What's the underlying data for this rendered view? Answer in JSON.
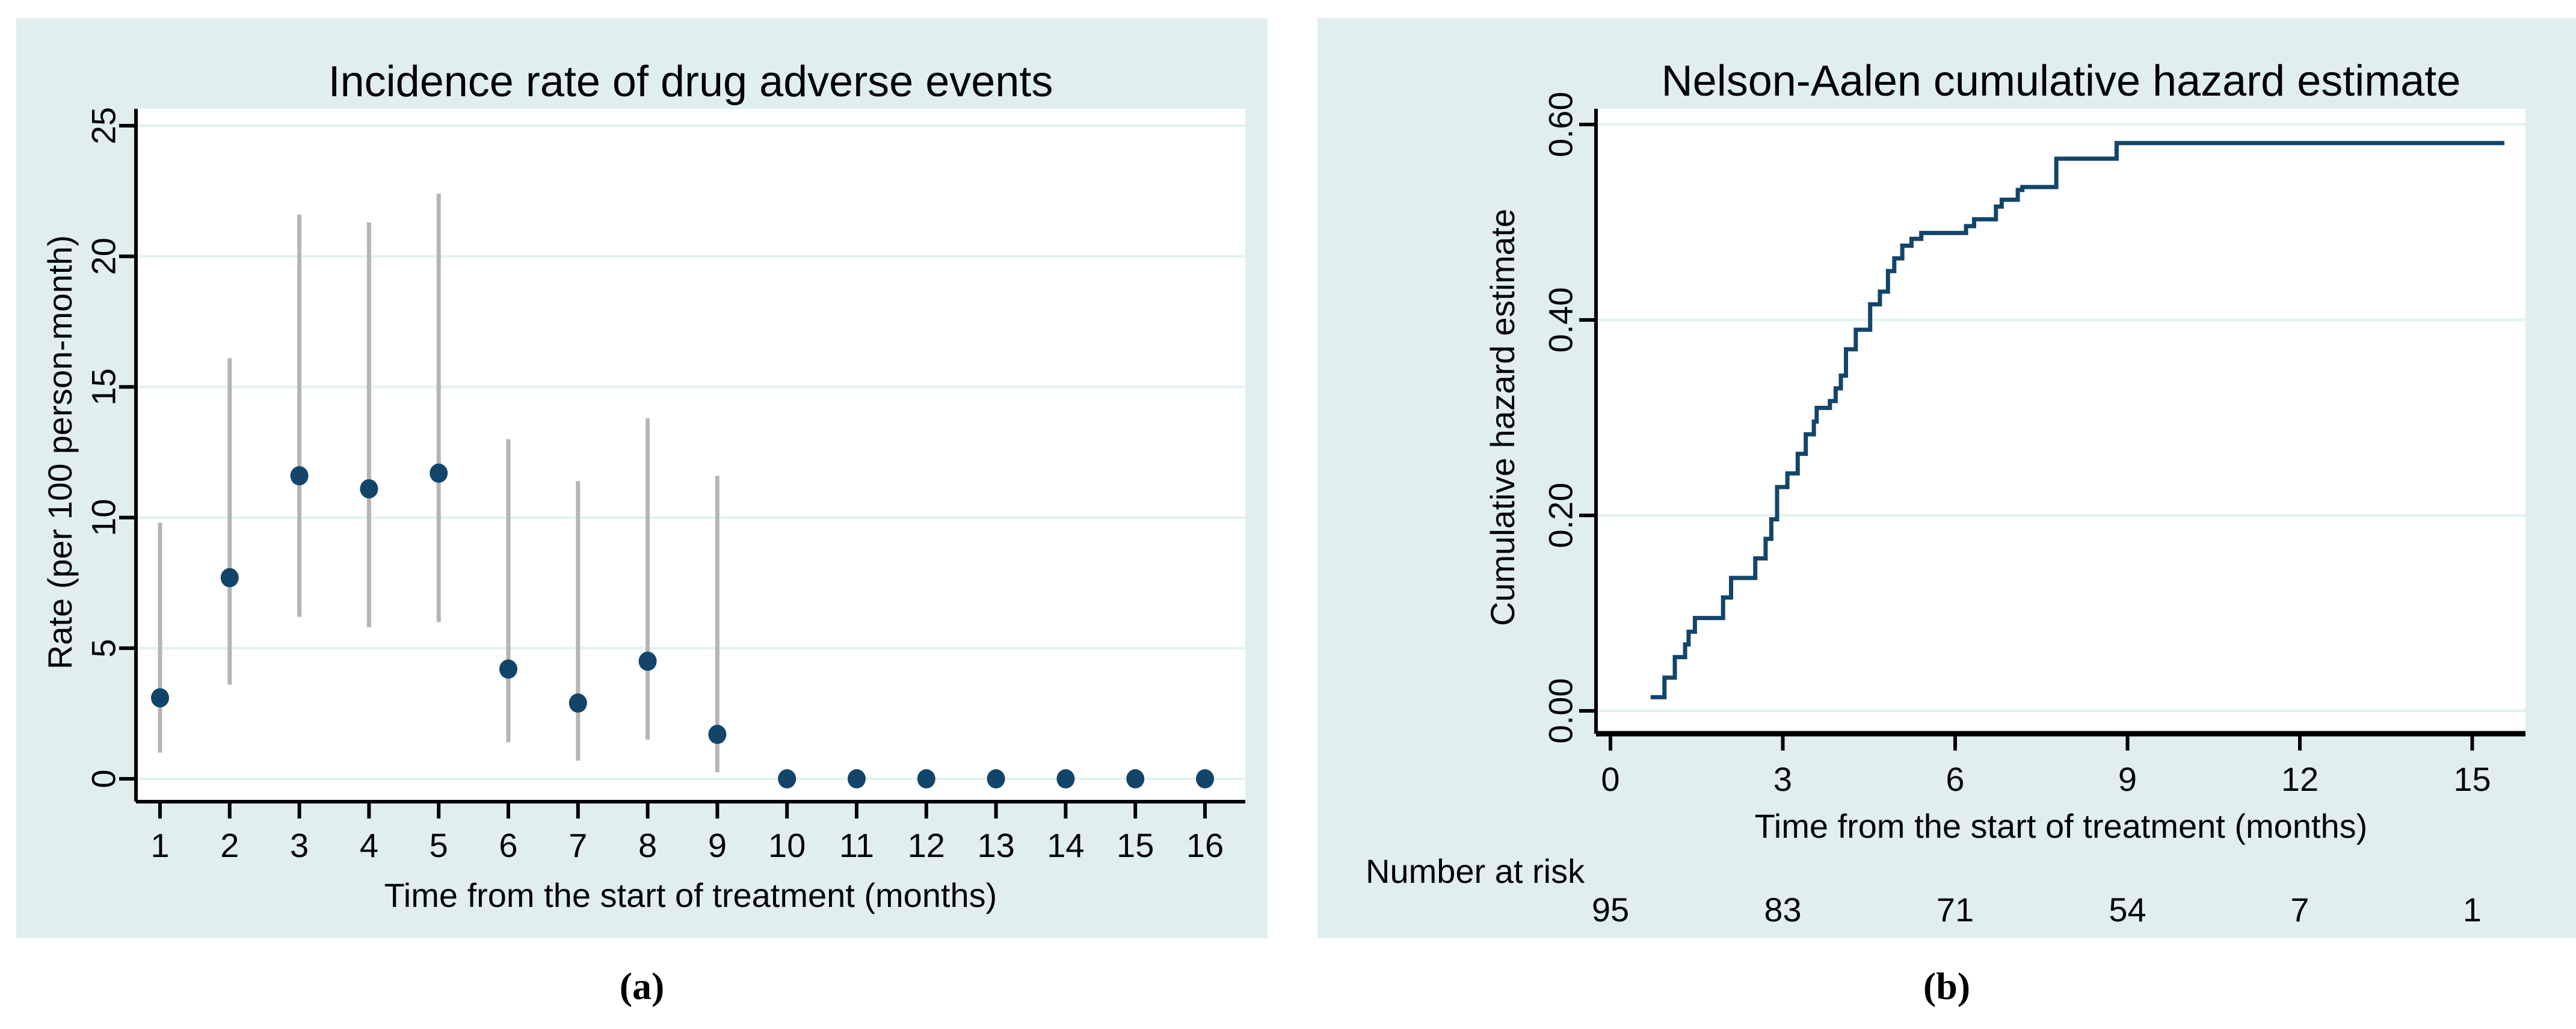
{
  "figure": {
    "panel_background": "#e1eef0",
    "plot_background": "#ffffff",
    "grid_color": "#e2f1f2",
    "navy": "#124569",
    "title_color": "#17365d",
    "ci_color": "#b5b5b5",
    "axis_color": "#000000",
    "captions": {
      "a": "(a)",
      "b": "(b)"
    }
  },
  "chart_data": [
    {
      "id": "incidence-rate",
      "type": "scatter",
      "title": "Incidence rate of drug adverse events",
      "xlabel": "Time from the start of treatment (months)",
      "ylabel": "Rate (per 100 person-month)",
      "x_ticks": [
        1,
        2,
        3,
        4,
        5,
        6,
        7,
        8,
        9,
        10,
        11,
        12,
        13,
        14,
        15,
        16
      ],
      "y_ticks": [
        0,
        5,
        10,
        15,
        20,
        25
      ],
      "ylim": [
        0,
        25
      ],
      "grid": true,
      "legend": "none",
      "points": [
        {
          "month": 1,
          "rate": 3.1,
          "ci_low": 1.0,
          "ci_high": 9.8
        },
        {
          "month": 2,
          "rate": 7.7,
          "ci_low": 3.6,
          "ci_high": 16.1
        },
        {
          "month": 3,
          "rate": 11.6,
          "ci_low": 6.2,
          "ci_high": 21.6
        },
        {
          "month": 4,
          "rate": 11.1,
          "ci_low": 5.8,
          "ci_high": 21.3
        },
        {
          "month": 5,
          "rate": 11.7,
          "ci_low": 6.0,
          "ci_high": 22.4
        },
        {
          "month": 6,
          "rate": 4.2,
          "ci_low": 1.4,
          "ci_high": 13.0
        },
        {
          "month": 7,
          "rate": 2.9,
          "ci_low": 0.7,
          "ci_high": 11.4
        },
        {
          "month": 8,
          "rate": 4.5,
          "ci_low": 1.5,
          "ci_high": 13.8
        },
        {
          "month": 9,
          "rate": 1.7,
          "ci_low": 0.25,
          "ci_high": 11.6
        },
        {
          "month": 10,
          "rate": 0,
          "ci_low": null,
          "ci_high": null
        },
        {
          "month": 11,
          "rate": 0,
          "ci_low": null,
          "ci_high": null
        },
        {
          "month": 12,
          "rate": 0,
          "ci_low": null,
          "ci_high": null
        },
        {
          "month": 13,
          "rate": 0,
          "ci_low": null,
          "ci_high": null
        },
        {
          "month": 14,
          "rate": 0,
          "ci_low": null,
          "ci_high": null
        },
        {
          "month": 15,
          "rate": 0,
          "ci_low": null,
          "ci_high": null
        },
        {
          "month": 16,
          "rate": 0,
          "ci_low": null,
          "ci_high": null
        }
      ]
    },
    {
      "id": "nelson-aalen",
      "type": "step",
      "title": "Nelson-Aalen cumulative hazard estimate",
      "xlabel": "Time from the start of treatment (months)",
      "ylabel": "Cumulative hazard estimate",
      "x_ticks": [
        0,
        3,
        6,
        9,
        12,
        15
      ],
      "y_ticks": [
        0.0,
        0.2,
        0.4,
        0.6
      ],
      "y_tick_labels": [
        "0.00",
        "0.20",
        "0.40",
        "0.60"
      ],
      "ylim": [
        0,
        0.6
      ],
      "grid": true,
      "legend": "none",
      "end_time": 15.56,
      "steps": [
        [
          0.7,
          0.014
        ],
        [
          0.94,
          0.034
        ],
        [
          1.12,
          0.055
        ],
        [
          1.3,
          0.068
        ],
        [
          1.36,
          0.081
        ],
        [
          1.47,
          0.095
        ],
        [
          1.96,
          0.116
        ],
        [
          2.1,
          0.136
        ],
        [
          2.52,
          0.156
        ],
        [
          2.7,
          0.176
        ],
        [
          2.8,
          0.196
        ],
        [
          2.9,
          0.229
        ],
        [
          3.08,
          0.243
        ],
        [
          3.26,
          0.263
        ],
        [
          3.4,
          0.283
        ],
        [
          3.54,
          0.296
        ],
        [
          3.59,
          0.31
        ],
        [
          3.82,
          0.317
        ],
        [
          3.92,
          0.33
        ],
        [
          4.01,
          0.343
        ],
        [
          4.1,
          0.37
        ],
        [
          4.27,
          0.39
        ],
        [
          4.52,
          0.416
        ],
        [
          4.69,
          0.429
        ],
        [
          4.83,
          0.45
        ],
        [
          4.94,
          0.463
        ],
        [
          5.08,
          0.476
        ],
        [
          5.24,
          0.483
        ],
        [
          5.41,
          0.489
        ],
        [
          6.19,
          0.496
        ],
        [
          6.33,
          0.503
        ],
        [
          6.71,
          0.516
        ],
        [
          6.81,
          0.523
        ],
        [
          7.09,
          0.533
        ],
        [
          7.17,
          0.536
        ],
        [
          7.76,
          0.565
        ],
        [
          8.81,
          0.581
        ]
      ],
      "number_at_risk": {
        "label": "Number at risk",
        "times": [
          0,
          3,
          6,
          9,
          12,
          15
        ],
        "values": [
          95,
          83,
          71,
          54,
          7,
          1
        ]
      }
    }
  ]
}
